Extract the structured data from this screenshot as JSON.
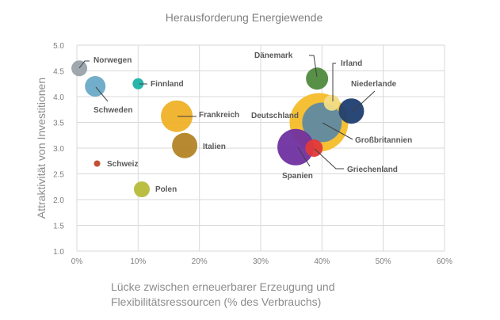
{
  "chart_data": {
    "type": "scatter",
    "subtype": "bubble",
    "title": "Herausforderung Energiewende",
    "xlabel_lines": [
      "Lücke zwischen erneuerbarer Erzeugung und",
      "Flexibilitätsressourcen (% des Verbrauchs)"
    ],
    "ylabel": "Attraktivität von Investitionen",
    "xlim": [
      0,
      60
    ],
    "ylim": [
      1.0,
      5.0
    ],
    "x_ticks": [
      0,
      10,
      20,
      30,
      40,
      50,
      60
    ],
    "x_tick_labels": [
      "0%",
      "10%",
      "20%",
      "30%",
      "40%",
      "50%",
      "60%"
    ],
    "y_ticks": [
      1.0,
      1.5,
      2.0,
      2.5,
      3.0,
      3.5,
      4.0,
      4.5,
      5.0
    ],
    "y_tick_labels": [
      "1.0",
      "1.5",
      "2.0",
      "2.5",
      "3.0",
      "3.5",
      "4.0",
      "4.5",
      "5.0"
    ],
    "grid": true,
    "legend": "none",
    "series": [
      {
        "name": "Deutschland",
        "x": 39.5,
        "y": 3.5,
        "size": 37,
        "color": "#f5bd2a"
      },
      {
        "name": "Großbritannien",
        "x": 40.0,
        "y": 3.5,
        "size": 25,
        "color": "#5f8aa3"
      },
      {
        "name": "Spanien",
        "x": 35.7,
        "y": 3.02,
        "size": 23,
        "color": "#7030a0"
      },
      {
        "name": "Griechenland",
        "x": 38.7,
        "y": 3.0,
        "size": 11,
        "color": "#e0383b"
      },
      {
        "name": "Irland",
        "x": 41.6,
        "y": 3.88,
        "size": 10,
        "color": "#f2dc86"
      },
      {
        "name": "Niederlande",
        "x": 44.8,
        "y": 3.72,
        "size": 16,
        "color": "#1f3e70"
      },
      {
        "name": "Dänemark",
        "x": 39.2,
        "y": 4.35,
        "size": 14,
        "color": "#4f8a3d"
      },
      {
        "name": "Norwegen",
        "x": 0.4,
        "y": 4.55,
        "size": 10,
        "color": "#9aa3ab"
      },
      {
        "name": "Schweden",
        "x": 3.0,
        "y": 4.2,
        "size": 13,
        "color": "#6aaac7"
      },
      {
        "name": "Finnland",
        "x": 10.0,
        "y": 4.25,
        "size": 7,
        "color": "#1eb1a6"
      },
      {
        "name": "Frankreich",
        "x": 16.3,
        "y": 3.62,
        "size": 20,
        "color": "#eeb128"
      },
      {
        "name": "Italien",
        "x": 17.6,
        "y": 3.05,
        "size": 16,
        "color": "#b38426"
      },
      {
        "name": "Schweiz",
        "x": 3.3,
        "y": 2.7,
        "size": 4,
        "color": "#c0462a"
      },
      {
        "name": "Polen",
        "x": 10.6,
        "y": 2.2,
        "size": 10,
        "color": "#b6bc3a"
      }
    ]
  }
}
